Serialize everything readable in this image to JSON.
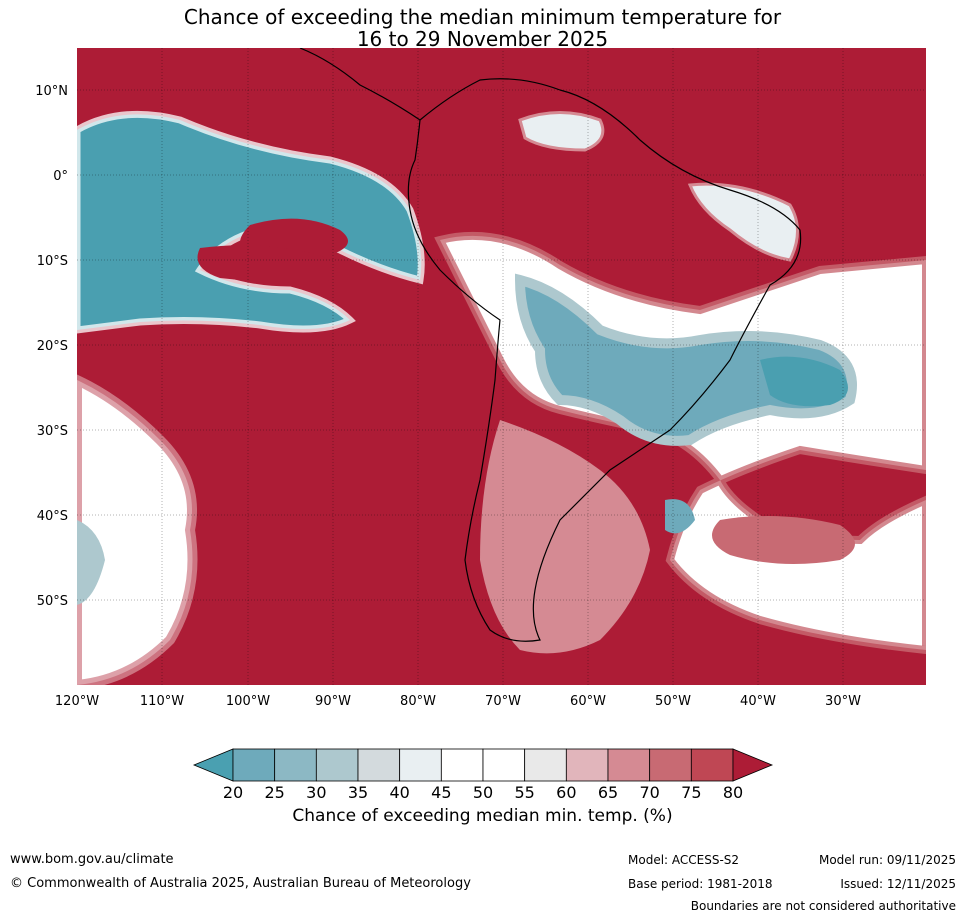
{
  "title": {
    "line1": "Chance of exceeding the median minimum temperature for",
    "line2": "16 to 29 November 2025"
  },
  "map": {
    "lat_labels": [
      "10°N",
      "0°",
      "10°S",
      "20°S",
      "30°S",
      "40°S",
      "50°S"
    ],
    "lon_labels": [
      "120°W",
      "110°W",
      "100°W",
      "90°W",
      "80°W",
      "70°W",
      "60°W",
      "50°W",
      "40°W",
      "30°W"
    ],
    "colors": {
      "warm": "#ad1c36",
      "cool": "#4a9fb0",
      "ocean_base": "#ad1c36"
    }
  },
  "colorbar": {
    "ticks": [
      "20",
      "25",
      "30",
      "35",
      "40",
      "45",
      "50",
      "55",
      "60",
      "65",
      "70",
      "75",
      "80"
    ],
    "colors": [
      "#4aa0b1",
      "#6eaabb",
      "#8cb8c4",
      "#adc8ce",
      "#d3dadd",
      "#e9eff2",
      "#ffffff",
      "#ffffff",
      "#e9e9e9",
      "#e1b5bb",
      "#d58a93",
      "#c86a73",
      "#bf4754",
      "#ad1c36"
    ],
    "label": "Chance of exceeding median min. temp. (%)"
  },
  "footer": {
    "url": "www.bom.gov.au/climate",
    "copyright": "© Commonwealth of Australia 2025, Australian Bureau of Meteorology",
    "model": "Model: ACCESS-S2",
    "model_run": "Model run: 09/11/2025",
    "base_period": "Base period: 1981-2018",
    "issued": "Issued: 12/11/2025",
    "disclaimer": "Boundaries are not considered authoritative"
  }
}
